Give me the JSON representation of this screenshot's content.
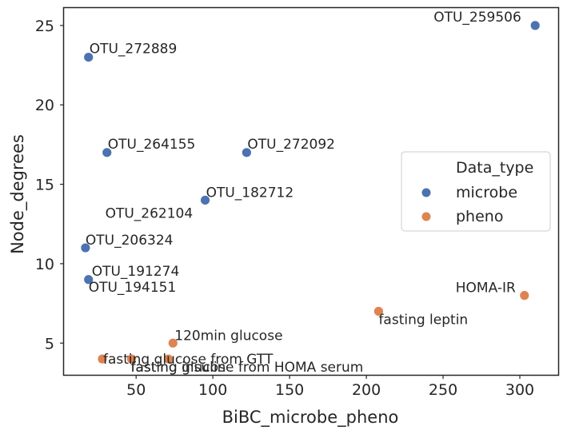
{
  "chart_data": {
    "type": "scatter",
    "xlabel": "BiBC_microbe_pheno",
    "ylabel": "Node_degrees",
    "xlim": [
      3,
      325
    ],
    "ylim": [
      3,
      26.1
    ],
    "xticks": [
      50,
      100,
      150,
      200,
      250,
      300
    ],
    "yticks": [
      5,
      10,
      15,
      20,
      25
    ],
    "grid": false,
    "legend": {
      "title": "Data_type",
      "position": "center-right",
      "entries": [
        "microbe",
        "pheno"
      ]
    },
    "colors": {
      "microbe": "#4c72b0",
      "pheno": "#dd8452",
      "frame": "#262626"
    },
    "series": [
      {
        "name": "microbe",
        "points": [
          {
            "label": "OTU_259506",
            "x": 310,
            "y": 25
          },
          {
            "label": "OTU_272889",
            "x": 19,
            "y": 23
          },
          {
            "label": "OTU_264155",
            "x": 31,
            "y": 17
          },
          {
            "label": "OTU_272092",
            "x": 122,
            "y": 17
          },
          {
            "label": "OTU_182712",
            "x": 95,
            "y": 14
          },
          {
            "label": "OTU_262104",
            "x": 95,
            "y": 14
          },
          {
            "label": "OTU_206324",
            "x": 17,
            "y": 11
          },
          {
            "label": "OTU_191274",
            "x": 19,
            "y": 9
          },
          {
            "label": "OTU_194151",
            "x": 19,
            "y": 9
          }
        ]
      },
      {
        "name": "pheno",
        "points": [
          {
            "label": "HOMA-IR",
            "x": 303,
            "y": 8
          },
          {
            "label": "fasting leptin",
            "x": 208,
            "y": 7
          },
          {
            "label": "120min glucose",
            "x": 74,
            "y": 5
          },
          {
            "label": "fasting glucose from GTT",
            "x": 28,
            "y": 4
          },
          {
            "label": "fasting glucose from HOMA serum",
            "x": 71,
            "y": 4
          },
          {
            "label": "fasting insulin",
            "x": 47,
            "y": 4
          }
        ]
      }
    ]
  }
}
